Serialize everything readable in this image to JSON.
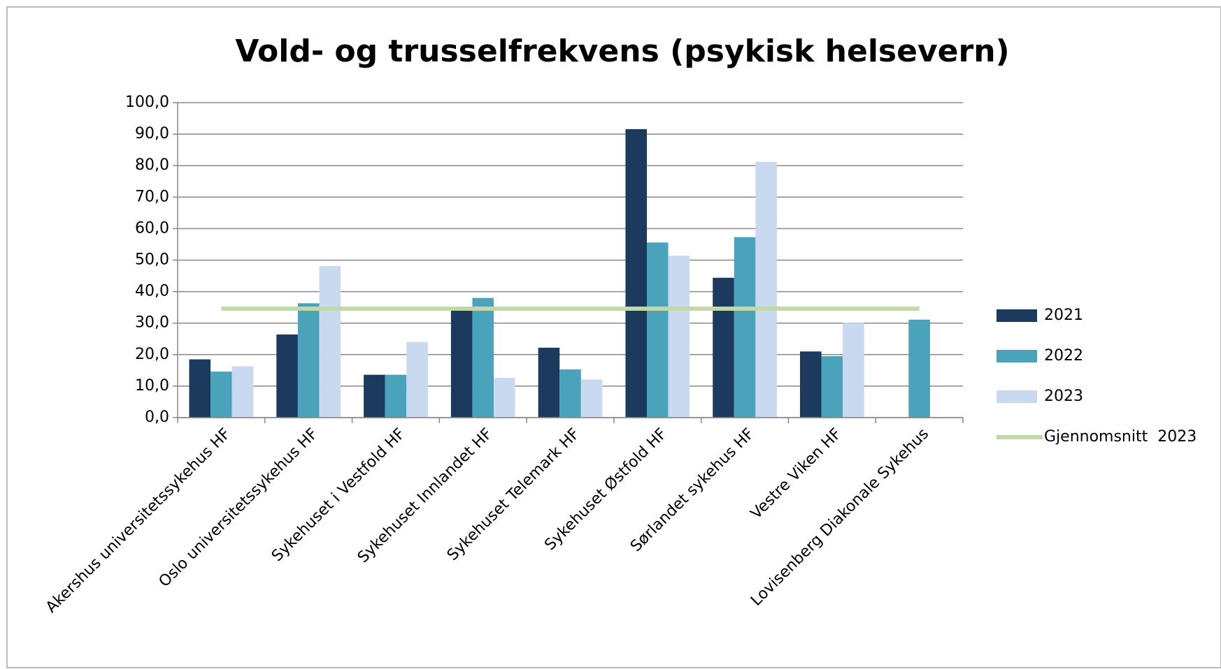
{
  "chart_data": {
    "type": "bar",
    "title": "Vold- og trusselfrekvens (psykisk helsevern)",
    "categories": [
      "Akershus universitetssykehus HF",
      "Oslo universitetssykehus HF",
      "Sykehuset i Vestfold HF",
      "Sykehuset Innlandet HF",
      "Sykehuset Telemark HF",
      "Sykehuset Østfold HF",
      "Sørlandet sykehus HF",
      "Vestre Viken HF",
      "Lovisenberg Diakonale Sykehus"
    ],
    "series": [
      {
        "name": "2021",
        "color": "#1b3a5e",
        "values": [
          18.5,
          26.4,
          13.6,
          34.1,
          22.2,
          91.6,
          44.4,
          21.0,
          null
        ]
      },
      {
        "name": "2022",
        "color": "#4aa3bb",
        "values": [
          14.6,
          36.3,
          13.6,
          38.0,
          15.3,
          55.6,
          57.3,
          19.5,
          31.1
        ]
      },
      {
        "name": "2023",
        "color": "#c9d9ef",
        "values": [
          16.3,
          48.1,
          24.0,
          12.6,
          12.1,
          51.4,
          81.2,
          30.1,
          null
        ]
      },
      {
        "name": "Gjennomsnitt  2023",
        "type": "line",
        "color": "#c3d8aa",
        "values": [
          34.6,
          34.6,
          34.6,
          34.6,
          34.6,
          34.6,
          34.6,
          34.6,
          34.6
        ]
      }
    ],
    "ylim": [
      0,
      100
    ],
    "yticks": [
      {
        "value": 0,
        "label": "0,0"
      },
      {
        "value": 10,
        "label": "10,0"
      },
      {
        "value": 20,
        "label": "20,0"
      },
      {
        "value": 30,
        "label": "30,0"
      },
      {
        "value": 40,
        "label": "40,0"
      },
      {
        "value": 50,
        "label": "50,0"
      },
      {
        "value": 60,
        "label": "60,0"
      },
      {
        "value": 70,
        "label": "70,0"
      },
      {
        "value": 80,
        "label": "80,0"
      },
      {
        "value": 90,
        "label": "90,0"
      },
      {
        "value": 100,
        "label": "100,0"
      }
    ],
    "grid": true,
    "legend": "right"
  }
}
